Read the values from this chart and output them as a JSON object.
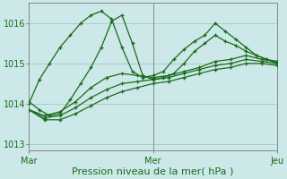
{
  "xlabel": "Pression niveau de la mer( hPa )",
  "background_color": "#cce8e8",
  "grid_color": "#aacccc",
  "line_color": "#1a6b1a",
  "ylim": [
    1012.85,
    1016.5
  ],
  "xlim": [
    0,
    96
  ],
  "yticks": [
    1013,
    1014,
    1015,
    1016
  ],
  "xtick_positions": [
    0,
    48,
    96
  ],
  "xtick_labels": [
    "Mar",
    "Mer",
    "Jeu"
  ],
  "series": [
    {
      "x": [
        0,
        4,
        8,
        12,
        16,
        20,
        24,
        28,
        32,
        36,
        40,
        44,
        48,
        52,
        56,
        60,
        64,
        68,
        72,
        76,
        80,
        84,
        88,
        92,
        96
      ],
      "y": [
        1014.0,
        1014.6,
        1015.0,
        1015.4,
        1015.7,
        1016.0,
        1016.2,
        1016.3,
        1016.1,
        1015.4,
        1014.8,
        1014.65,
        1014.7,
        1014.8,
        1015.1,
        1015.35,
        1015.55,
        1015.7,
        1016.0,
        1015.8,
        1015.6,
        1015.4,
        1015.2,
        1015.1,
        1015.0
      ]
    },
    {
      "x": [
        0,
        4,
        8,
        12,
        16,
        20,
        24,
        28,
        32,
        36,
        40,
        44,
        48,
        52,
        56,
        60,
        64,
        68,
        72,
        76,
        80,
        84,
        88,
        92,
        96
      ],
      "y": [
        1014.05,
        1013.85,
        1013.7,
        1013.75,
        1014.1,
        1014.5,
        1014.9,
        1015.4,
        1016.05,
        1016.2,
        1015.5,
        1014.7,
        1014.6,
        1014.65,
        1014.75,
        1015.0,
        1015.3,
        1015.5,
        1015.7,
        1015.55,
        1015.45,
        1015.3,
        1015.2,
        1015.1,
        1015.05
      ]
    },
    {
      "x": [
        0,
        6,
        12,
        18,
        24,
        30,
        36,
        42,
        48,
        54,
        60,
        66,
        72,
        78,
        84,
        90,
        96
      ],
      "y": [
        1013.85,
        1013.7,
        1013.8,
        1014.05,
        1014.4,
        1014.65,
        1014.75,
        1014.7,
        1014.65,
        1014.7,
        1014.8,
        1014.9,
        1015.05,
        1015.1,
        1015.2,
        1015.1,
        1015.05
      ]
    },
    {
      "x": [
        0,
        6,
        12,
        18,
        24,
        30,
        36,
        42,
        48,
        54,
        60,
        66,
        72,
        78,
        84,
        90,
        96
      ],
      "y": [
        1013.85,
        1013.65,
        1013.7,
        1013.9,
        1014.15,
        1014.35,
        1014.5,
        1014.55,
        1014.6,
        1014.65,
        1014.75,
        1014.85,
        1014.95,
        1015.0,
        1015.1,
        1015.05,
        1015.0
      ]
    },
    {
      "x": [
        0,
        6,
        12,
        18,
        24,
        30,
        36,
        42,
        48,
        54,
        60,
        66,
        72,
        78,
        84,
        90,
        96
      ],
      "y": [
        1013.85,
        1013.6,
        1013.6,
        1013.75,
        1013.95,
        1014.15,
        1014.3,
        1014.4,
        1014.5,
        1014.55,
        1014.65,
        1014.75,
        1014.85,
        1014.9,
        1015.0,
        1015.0,
        1014.95
      ]
    }
  ],
  "xlabel_fontsize": 8,
  "tick_fontsize": 7,
  "figwidth": 3.2,
  "figheight": 2.0,
  "dpi": 100
}
